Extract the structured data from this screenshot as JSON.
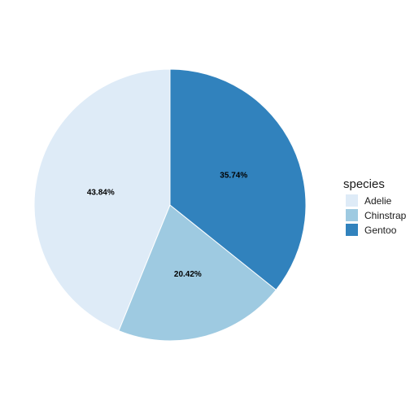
{
  "chart_data": {
    "type": "pie",
    "title": "",
    "legend_title": "species",
    "legend_position": "right",
    "categories": [
      "Adelie",
      "Chinstrap",
      "Gentoo"
    ],
    "values": [
      43.84,
      20.42,
      35.74
    ],
    "labels": [
      "43.84%",
      "20.42%",
      "35.74%"
    ],
    "colors": [
      "#deebf7",
      "#9ecae1",
      "#3182bd"
    ],
    "start_angle": "12 o'clock",
    "direction": "counterclockwise"
  }
}
